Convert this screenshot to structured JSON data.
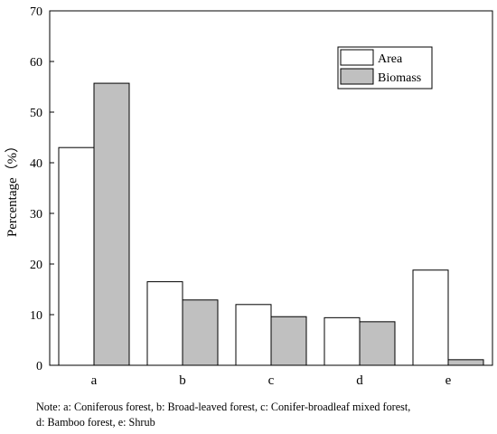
{
  "chart_data": {
    "type": "bar",
    "ylabel": "Percentage（%）",
    "ylim": [
      0,
      70
    ],
    "yticks": [
      0,
      10,
      20,
      30,
      40,
      50,
      60,
      70
    ],
    "categories": [
      "a",
      "b",
      "c",
      "d",
      "e"
    ],
    "series": [
      {
        "name": "Area",
        "values": [
          43.0,
          16.5,
          12.0,
          9.4,
          18.8
        ],
        "color": "#ffffff"
      },
      {
        "name": "Biomass",
        "values": [
          55.7,
          12.9,
          9.6,
          8.6,
          1.1
        ],
        "color": "#c0c0c0"
      }
    ],
    "legend_position": "top-right",
    "grid": false
  },
  "note": {
    "line1": "Note: a: Coniferous forest, b: Broad-leaved forest, c: Conifer-broadleaf mixed forest,",
    "line2": "d: Bamboo forest, e: Shrub"
  }
}
